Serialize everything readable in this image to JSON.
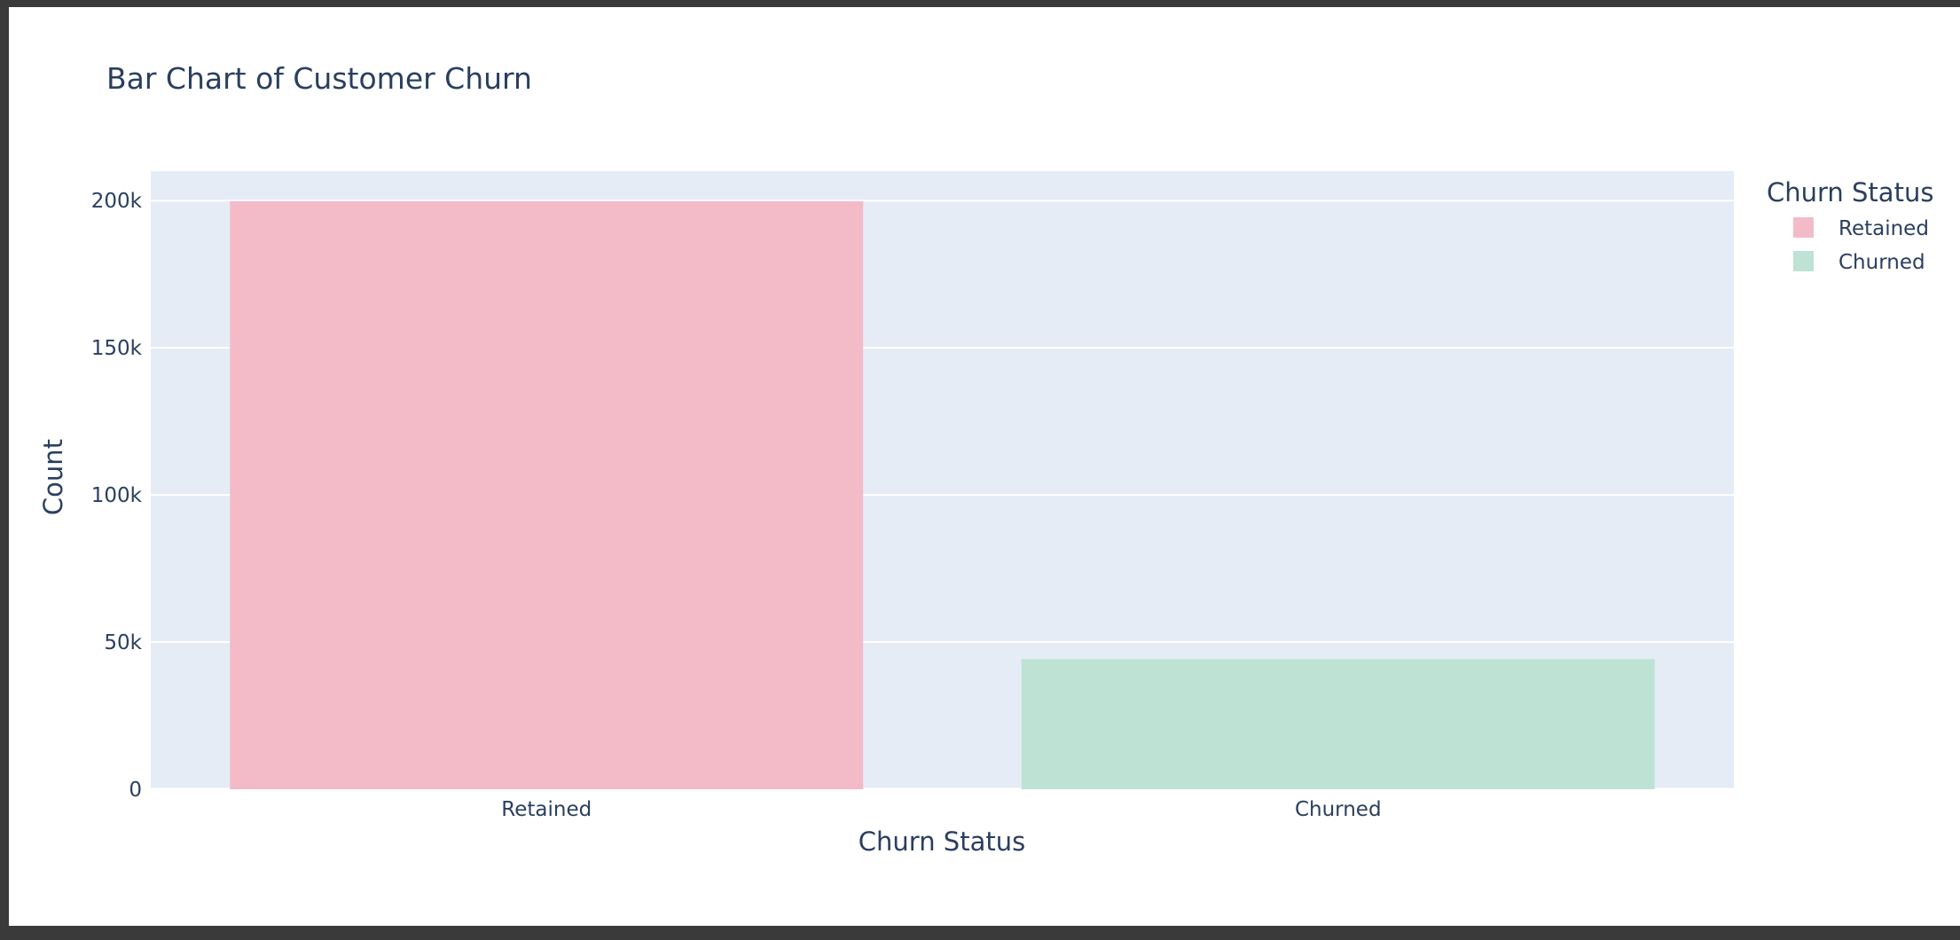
{
  "chart_data": {
    "type": "bar",
    "title": "Bar Chart of Customer Churn",
    "xlabel": "Churn Status",
    "ylabel": "Count",
    "categories": [
      "Retained",
      "Churned"
    ],
    "values": [
      199800,
      44200
    ],
    "colors": [
      "#f3bbc8",
      "#bee2d4"
    ],
    "ylim": [
      0,
      210000
    ],
    "yticks": [
      0,
      50000,
      100000,
      150000,
      200000
    ],
    "ytick_labels": [
      "0",
      "50k",
      "100k",
      "150k",
      "200k"
    ],
    "grid": true,
    "legend": {
      "title": "Churn Status",
      "position": "top-right",
      "items": [
        {
          "label": "Retained",
          "color": "#f3bbc8"
        },
        {
          "label": "Churned",
          "color": "#bee2d4"
        }
      ]
    },
    "plot_bg": "#e5ecf6",
    "text_color": "#2a3f5f"
  }
}
